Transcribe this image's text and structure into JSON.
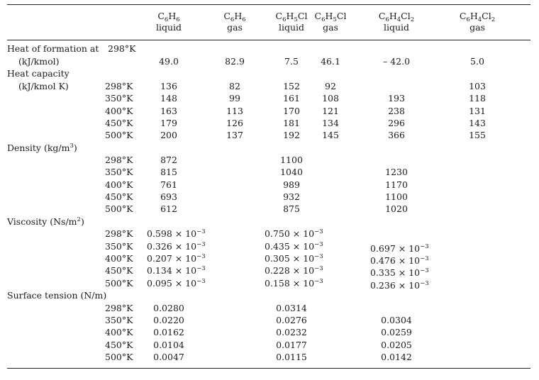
{
  "headers": [
    {
      "formula": [
        "C",
        "6",
        "H",
        "6"
      ],
      "phase": "liquid"
    },
    {
      "formula": [
        "C",
        "6",
        "H",
        "6"
      ],
      "phase": "gas"
    },
    {
      "formula": [
        "C",
        "6",
        "H",
        "5",
        "Cl"
      ],
      "phase": "liquid"
    },
    {
      "formula": [
        "C",
        "6",
        "H",
        "5",
        "Cl"
      ],
      "phase": "gas"
    },
    {
      "formula": [
        "C",
        "6",
        "H",
        "4",
        "Cl",
        "2"
      ],
      "phase": "liquid"
    },
    {
      "formula": [
        "C",
        "6",
        "H",
        "4",
        "Cl",
        "2"
      ],
      "phase": "gas"
    }
  ],
  "heat_of_formation": {
    "label": "Heat of formation at",
    "temp": "298°K",
    "unit": "(kJ/kmol)",
    "values": [
      "49.0",
      "82.9",
      "7.5",
      "46.1",
      "– 42.0",
      "5.0"
    ]
  },
  "heat_capacity": {
    "label": "Heat capacity",
    "unit": "(kJ/kmol K)",
    "rows": [
      {
        "temp": "298°K",
        "c1": "136",
        "c2": "82",
        "c3": "152",
        "c4": "92",
        "c5": "",
        "c6": "103"
      },
      {
        "temp": "350°K",
        "c1": "148",
        "c2": "99",
        "c3": "161",
        "c4": "108",
        "c5": "193",
        "c6": "118"
      },
      {
        "temp": "400°K",
        "c1": "163",
        "c2": "113",
        "c3": "170",
        "c4": "121",
        "c5": "238",
        "c6": "131"
      },
      {
        "temp": "450°K",
        "c1": "179",
        "c2": "126",
        "c3": "181",
        "c4": "134",
        "c5": "296",
        "c6": "143"
      },
      {
        "temp": "500°K",
        "c1": "200",
        "c2": "137",
        "c3": "192",
        "c4": "145",
        "c5": "366",
        "c6": "155"
      }
    ]
  },
  "density": {
    "label": "Density (kg/m",
    "label_sup": "3",
    "label_end": ")",
    "rows": [
      {
        "temp": "298°K",
        "c1": "872",
        "c3": "1100",
        "c5": ""
      },
      {
        "temp": "350°K",
        "c1": "815",
        "c3": "1040",
        "c5": "1230"
      },
      {
        "temp": "400°K",
        "c1": "761",
        "c3": "989",
        "c5": "1170"
      },
      {
        "temp": "450°K",
        "c1": "693",
        "c3": "932",
        "c5": "1100"
      },
      {
        "temp": "500°K",
        "c1": "612",
        "c3": "875",
        "c5": "1020"
      }
    ]
  },
  "viscosity": {
    "label": "Viscosity (Ns/m",
    "label_sup": "2",
    "label_end": ")",
    "exp_base": " × 10",
    "exp": "−3",
    "rows": [
      {
        "temp": "298°K",
        "c1": "0.598",
        "c3": "0.750",
        "c5": ""
      },
      {
        "temp": "350°K",
        "c1": "0.326",
        "c3": "0.435",
        "c5": "0.697"
      },
      {
        "temp": "400°K",
        "c1": "0.207",
        "c3": "0.305",
        "c5": "0.476"
      },
      {
        "temp": "450°K",
        "c1": "0.134",
        "c3": "0.228",
        "c5": "0.335"
      },
      {
        "temp": "500°K",
        "c1": "0.095",
        "c3": "0.158",
        "c5": "0.236"
      }
    ]
  },
  "surface_tension": {
    "label": "Surface tension (N/m)",
    "rows": [
      {
        "temp": "298°K",
        "c1": "0.0280",
        "c3": "0.0314",
        "c5": ""
      },
      {
        "temp": "350°K",
        "c1": "0.0220",
        "c3": "0.0276",
        "c5": "0.0304"
      },
      {
        "temp": "400°K",
        "c1": "0.0162",
        "c3": "0.0232",
        "c5": "0.0259"
      },
      {
        "temp": "450°K",
        "c1": "0.0104",
        "c3": "0.0177",
        "c5": "0.0205"
      },
      {
        "temp": "500°K",
        "c1": "0.0047",
        "c3": "0.0115",
        "c5": "0.0142"
      }
    ]
  }
}
